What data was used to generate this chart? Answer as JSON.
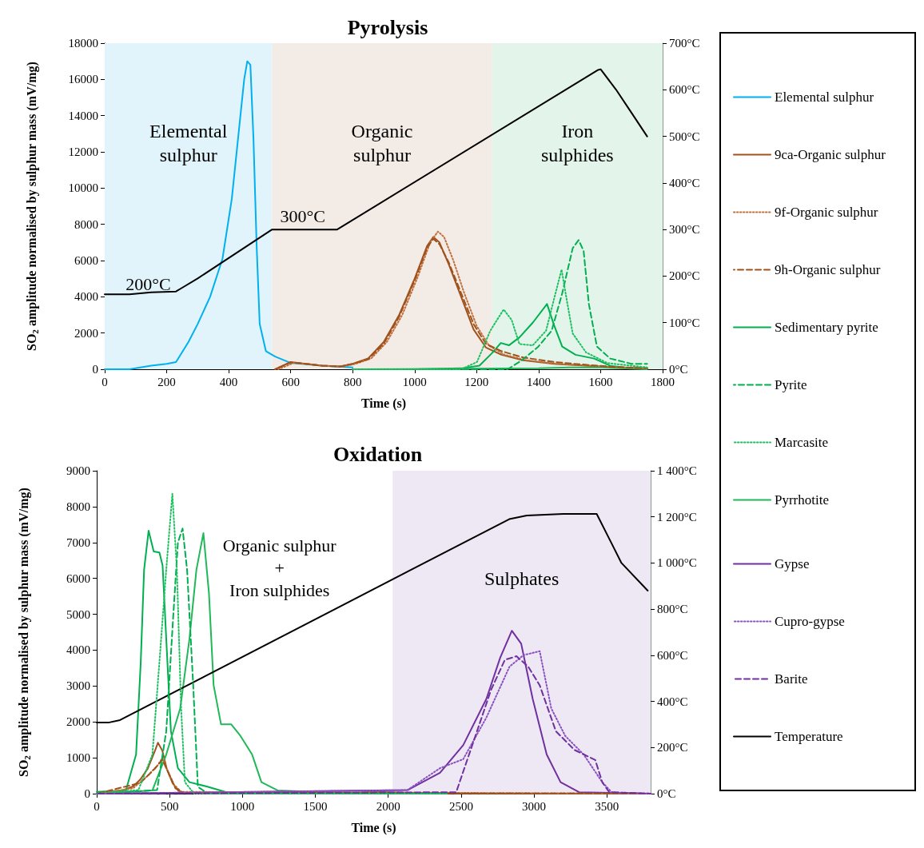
{
  "chart_data": [
    {
      "type": "line",
      "title": "Pyrolysis",
      "xlabel": "Time (s)",
      "ylabel": "SO$_{2}$ amplitude normalised by sulphur mass (mV/mg)",
      "xlim": [
        0,
        1800
      ],
      "xticks": [
        0,
        200,
        400,
        600,
        800,
        1000,
        1200,
        1400,
        1600,
        1800
      ],
      "ylim": [
        0,
        18000
      ],
      "yticks": [
        0,
        2000,
        4000,
        6000,
        8000,
        10000,
        12000,
        14000,
        16000,
        18000
      ],
      "y2lim": [
        0,
        700
      ],
      "y2ticks": [
        {
          "value": 0,
          "label": "0°C"
        },
        {
          "value": 100,
          "label": "100°C"
        },
        {
          "value": 200,
          "label": "200°C"
        },
        {
          "value": 300,
          "label": "300°C"
        },
        {
          "value": 400,
          "label": "400°C"
        },
        {
          "value": 500,
          "label": "500°C"
        },
        {
          "value": 600,
          "label": "600°C"
        },
        {
          "value": 700,
          "label": "700°C"
        }
      ],
      "grid": false,
      "legend": "right",
      "bands": [
        {
          "axis": "x",
          "from": 0,
          "to": 540,
          "label": "Elemental\nsulphur",
          "color": "#e1f3fb"
        },
        {
          "axis": "x",
          "from": 540,
          "to": 1250,
          "label": "Organic\nsulphur",
          "color": "#f3ebe6"
        },
        {
          "axis": "x",
          "from": 1250,
          "to": 1800,
          "label": "Iron\nsulphides",
          "color": "#e3f4ea"
        }
      ],
      "annotations": [
        "200°C",
        "300°C"
      ],
      "series": [
        {
          "name": "Elemental sulphur",
          "color": "#00b0f0",
          "line_style": "solid",
          "x": [
            0,
            80,
            150,
            200,
            230,
            270,
            300,
            340,
            380,
            410,
            430,
            450,
            460,
            470,
            480,
            490,
            500,
            520,
            550,
            600,
            700,
            800
          ],
          "values": [
            0,
            0,
            200,
            300,
            400,
            1500,
            2500,
            4000,
            6100,
            9400,
            12700,
            16000,
            17000,
            16800,
            12700,
            6900,
            2500,
            1000,
            700,
            350,
            200,
            100
          ]
        },
        {
          "name": "9ca-Organic sulphur",
          "color": "#a0521c",
          "line_style": "solid",
          "x": [
            550,
            600,
            650,
            700,
            760,
            800,
            850,
            900,
            950,
            1000,
            1040,
            1060,
            1080,
            1110,
            1150,
            1190,
            1230,
            1280,
            1350,
            1450,
            1550,
            1650,
            1750
          ],
          "values": [
            0,
            400,
            300,
            200,
            150,
            300,
            600,
            1500,
            3000,
            5000,
            6800,
            7300,
            7000,
            5800,
            4000,
            2200,
            1200,
            800,
            500,
            300,
            200,
            100,
            50
          ]
        },
        {
          "name": "9f-Organic sulphur",
          "color": "#c0703c",
          "line_style": "dotted",
          "x": [
            560,
            610,
            660,
            710,
            770,
            810,
            860,
            910,
            960,
            1010,
            1050,
            1075,
            1095,
            1125,
            1160,
            1200,
            1240,
            1290,
            1360,
            1460,
            1560,
            1660,
            1750
          ],
          "values": [
            0,
            350,
            280,
            180,
            150,
            300,
            600,
            1500,
            3000,
            5100,
            7000,
            7600,
            7300,
            6000,
            4200,
            2400,
            1300,
            800,
            500,
            300,
            200,
            100,
            50
          ]
        },
        {
          "name": "9h-Organic sulphur",
          "color": "#a0521c",
          "line_style": "dashed",
          "x": [
            550,
            600,
            650,
            700,
            760,
            800,
            850,
            900,
            950,
            1000,
            1040,
            1060,
            1080,
            1110,
            1150,
            1190,
            1230,
            1280,
            1350,
            1450,
            1550,
            1650,
            1750
          ],
          "values": [
            0,
            380,
            300,
            200,
            150,
            300,
            550,
            1400,
            2900,
            4900,
            6700,
            7200,
            6900,
            5900,
            4200,
            2500,
            1400,
            1000,
            650,
            400,
            250,
            120,
            60
          ]
        },
        {
          "name": "Sedimentary pyrite",
          "color": "#00b050",
          "line_style": "solid",
          "x": [
            800,
            1000,
            1150,
            1209,
            1250,
            1278,
            1304,
            1338,
            1381,
            1427,
            1450,
            1476,
            1519,
            1579,
            1631,
            1700,
            1750
          ],
          "values": [
            0,
            0,
            50,
            200,
            900,
            1450,
            1320,
            1760,
            2570,
            3600,
            2420,
            1250,
            800,
            590,
            190,
            50,
            30
          ]
        },
        {
          "name": "Pyrite",
          "color": "#00b050",
          "line_style": "dashed",
          "x": [
            800,
            1300,
            1347,
            1399,
            1442,
            1476,
            1510,
            1529,
            1545,
            1562,
            1588,
            1631,
            1700,
            1750
          ],
          "values": [
            0,
            0,
            510,
            1250,
            2130,
            4190,
            6690,
            7130,
            6540,
            3600,
            1250,
            590,
            300,
            300
          ]
        },
        {
          "name": "Marcasite",
          "color": "#1cc060",
          "line_style": "dotted",
          "x": [
            800,
            1150,
            1201,
            1244,
            1287,
            1313,
            1338,
            1381,
            1424,
            1450,
            1474,
            1493,
            1510,
            1553,
            1622,
            1750
          ],
          "values": [
            0,
            0,
            400,
            2130,
            3300,
            2720,
            1390,
            1320,
            2130,
            3900,
            5500,
            3600,
            1970,
            930,
            340,
            100
          ]
        },
        {
          "name": "Pyrrhotite",
          "color": "#20b858",
          "line_style": "solid",
          "x": [
            800,
            1400,
            1500,
            1600,
            1750
          ],
          "values": [
            0,
            50,
            100,
            100,
            0
          ]
        },
        {
          "color": "#000000",
          "line_style": "solid",
          "axis": "y2",
          "x": [
            0,
            80,
            150,
            230,
            250,
            300,
            540,
            750,
            1590,
            1600,
            1650,
            1700,
            1750
          ],
          "values": [
            161,
            161,
            165,
            167,
            175,
            195,
            300,
            300,
            642,
            644,
            600,
            550,
            500
          ]
        }
      ]
    },
    {
      "type": "line",
      "title": "Oxidation",
      "xlabel": "Time (s)",
      "ylabel": "SO$_{2}$ amplitude normalised by sulphur mass (mV/mg)",
      "xlim": [
        0,
        3800
      ],
      "xticks": [
        0,
        500,
        1000,
        1500,
        2000,
        2500,
        3000,
        3500
      ],
      "ylim": [
        0,
        9000
      ],
      "yticks": [
        0,
        1000,
        2000,
        3000,
        4000,
        5000,
        6000,
        7000,
        8000,
        9000
      ],
      "y2lim": [
        0,
        1400
      ],
      "y2ticks": [
        {
          "value": 0,
          "label": "0°C"
        },
        {
          "value": 200,
          "label": "200°C"
        },
        {
          "value": 400,
          "label": "400°C"
        },
        {
          "value": 600,
          "label": "600°C"
        },
        {
          "value": 800,
          "label": "800°C"
        },
        {
          "value": 1000,
          "label": "1 000°C"
        },
        {
          "value": 1200,
          "label": "1 200°C"
        },
        {
          "value": 1400,
          "label": "1 400°C"
        }
      ],
      "grid": false,
      "legend": "right",
      "bands": [
        {
          "axis": "x",
          "from": 2030,
          "to": 3800,
          "label": "Sulphates",
          "color": "#ede8f3"
        }
      ],
      "annotations": [
        "Organic sulphur\n+\nIron sulphides"
      ],
      "series": [
        {
          "color": "#a0521c",
          "line_style": "solid",
          "x": [
            0,
            150,
            250,
            300,
            350,
            400,
            420,
            450,
            480,
            520,
            560,
            600,
            1800,
            1900,
            2000,
            2200,
            3400,
            3800
          ],
          "values": [
            0,
            50,
            200,
            400,
            700,
            1200,
            1420,
            1200,
            700,
            300,
            80,
            20,
            30,
            60,
            40,
            10,
            0,
            0
          ]
        },
        {
          "color": "#c0703c",
          "line_style": "dotted",
          "x": [
            0,
            250,
            350,
            420,
            450,
            480,
            530,
            580,
            2000,
            3800
          ],
          "values": [
            0,
            150,
            500,
            800,
            1000,
            700,
            250,
            50,
            30,
            0
          ]
        },
        {
          "color": "#a0521c",
          "line_style": "dashed",
          "x": [
            0,
            300,
            400,
            450,
            490,
            540,
            600,
            3800
          ],
          "values": [
            0,
            300,
            700,
            950,
            600,
            150,
            20,
            0
          ]
        },
        {
          "color": "#00b050",
          "line_style": "solid",
          "x": [
            0,
            200,
            270,
            302,
            325,
            356,
            391,
            430,
            452,
            477,
            509,
            557,
            636,
            764,
            923,
            2000,
            2400
          ],
          "values": [
            50,
            90,
            1090,
            3660,
            6240,
            7330,
            6750,
            6720,
            6360,
            4310,
            1740,
            710,
            320,
            190,
            0,
            0,
            0
          ]
        },
        {
          "color": "#00b050",
          "line_style": "dashed",
          "x": [
            0,
            414,
            477,
            525,
            557,
            589,
            620,
            662,
            694,
            764,
            2400
          ],
          "values": [
            0,
            100,
            1740,
            4950,
            7000,
            7390,
            6240,
            3020,
            190,
            0,
            0
          ]
        },
        {
          "color": "#1cc060",
          "line_style": "dotted",
          "x": [
            0,
            286,
            382,
            430,
            477,
            519,
            550,
            579,
            605,
            668,
            2400
          ],
          "values": [
            0,
            100,
            1090,
            3660,
            6240,
            8360,
            6240,
            2380,
            320,
            0,
            0
          ]
        },
        {
          "color": "#20b858",
          "line_style": "solid",
          "x": [
            0,
            382,
            477,
            573,
            636,
            684,
            732,
            770,
            802,
            853,
            923,
            986,
            1066,
            1130,
            1241,
            1559,
            2000,
            2400
          ],
          "values": [
            0,
            90,
            1090,
            2380,
            4310,
            6240,
            7260,
            5590,
            3020,
            1930,
            1930,
            1610,
            1090,
            320,
            90,
            40,
            30,
            0
          ]
        },
        {
          "name": "Gypse",
          "color": "#7030a0",
          "line_style": "solid",
          "x": [
            0,
            2132,
            2355,
            2514,
            2673,
            2768,
            2848,
            2912,
            2991,
            3087,
            3182,
            3309,
            3800
          ],
          "values": [
            0,
            100,
            580,
            1350,
            2640,
            3790,
            4540,
            4180,
            2640,
            1090,
            320,
            40,
            0
          ]
        },
        {
          "name": "Cupro-gypse",
          "color": "#8a50c0",
          "line_style": "dotted",
          "x": [
            0,
            2132,
            2355,
            2514,
            2673,
            2832,
            2927,
            3039,
            3118,
            3214,
            3341,
            3468,
            3532,
            3800
          ],
          "values": [
            0,
            100,
            710,
            960,
            2120,
            3540,
            3860,
            3970,
            2380,
            1610,
            1090,
            320,
            40,
            0
          ]
        },
        {
          "name": "Barite",
          "color": "#7030a0",
          "line_style": "dashed",
          "x": [
            0,
            2466,
            2609,
            2705,
            2800,
            2880,
            2960,
            3039,
            3150,
            3277,
            3420,
            3468,
            3516,
            3800
          ],
          "values": [
            0,
            40,
            1740,
            2890,
            3730,
            3830,
            3540,
            3020,
            1740,
            1220,
            940,
            320,
            40,
            0
          ]
        },
        {
          "name": "Temperature",
          "color": "#000000",
          "line_style": "solid",
          "axis": "y2",
          "x": [
            0,
            80,
            160,
            2830,
            2950,
            3200,
            3430,
            3600,
            3780
          ],
          "values": [
            308,
            308,
            319,
            1190,
            1206,
            1213,
            1213,
            1000,
            880
          ]
        }
      ]
    }
  ]
}
